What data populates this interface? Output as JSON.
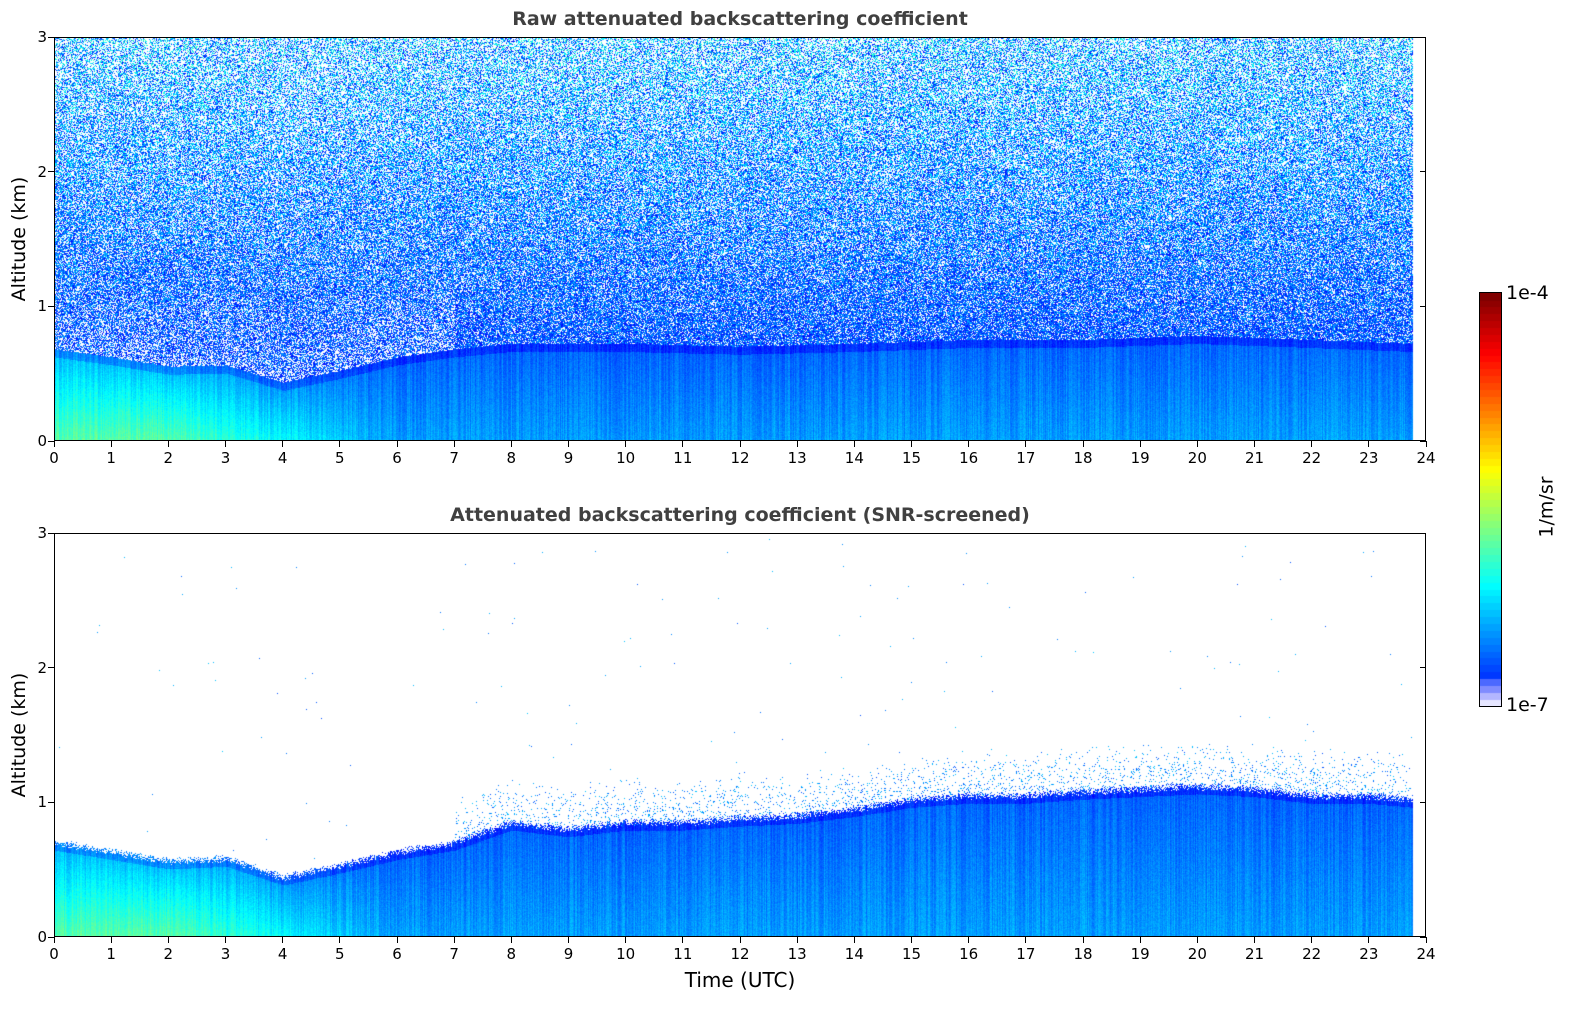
{
  "chart_data": [
    {
      "type": "heatmap",
      "title": "Raw attenuated backscattering coefficient",
      "xlabel": "",
      "ylabel": "Altitude (km)",
      "xlim": [
        0,
        24
      ],
      "ylim": [
        0,
        3
      ],
      "x_ticks": [
        "0",
        "1",
        "2",
        "3",
        "4",
        "5",
        "6",
        "7",
        "8",
        "9",
        "10",
        "11",
        "12",
        "13",
        "14",
        "15",
        "16",
        "17",
        "18",
        "19",
        "20",
        "21",
        "22",
        "23",
        "24"
      ],
      "y_ticks": [
        "0",
        "1",
        "2",
        "3"
      ],
      "data_end_time": 23.8,
      "layer_top_km": [
        [
          0,
          0.68
        ],
        [
          1,
          0.62
        ],
        [
          2,
          0.55
        ],
        [
          3,
          0.56
        ],
        [
          4,
          0.43
        ],
        [
          5,
          0.52
        ],
        [
          6,
          0.62
        ],
        [
          7,
          0.68
        ],
        [
          8,
          0.72
        ],
        [
          10,
          0.72
        ],
        [
          12,
          0.7
        ],
        [
          14,
          0.72
        ],
        [
          16,
          0.75
        ],
        [
          18,
          0.75
        ],
        [
          20,
          0.78
        ],
        [
          22,
          0.75
        ],
        [
          23.8,
          0.72
        ]
      ],
      "noise": true
    },
    {
      "type": "heatmap",
      "title": "Attenuated backscattering coefficient (SNR-screened)",
      "xlabel": "Time (UTC)",
      "ylabel": "Altitude (km)",
      "xlim": [
        0,
        24
      ],
      "ylim": [
        0,
        3
      ],
      "x_ticks": [
        "0",
        "1",
        "2",
        "3",
        "4",
        "5",
        "6",
        "7",
        "8",
        "9",
        "10",
        "11",
        "12",
        "13",
        "14",
        "15",
        "16",
        "17",
        "18",
        "19",
        "20",
        "21",
        "22",
        "23",
        "24"
      ],
      "y_ticks": [
        "0",
        "1",
        "2",
        "3"
      ],
      "data_end_time": 23.8,
      "layer_top_km": [
        [
          0,
          0.7
        ],
        [
          1,
          0.63
        ],
        [
          2,
          0.56
        ],
        [
          3,
          0.58
        ],
        [
          4,
          0.44
        ],
        [
          5,
          0.53
        ],
        [
          6,
          0.63
        ],
        [
          7,
          0.7
        ],
        [
          8,
          0.85
        ],
        [
          9,
          0.8
        ],
        [
          10,
          0.85
        ],
        [
          11,
          0.85
        ],
        [
          12,
          0.88
        ],
        [
          13,
          0.9
        ],
        [
          14,
          0.95
        ],
        [
          15,
          1.02
        ],
        [
          16,
          1.05
        ],
        [
          17,
          1.05
        ],
        [
          18,
          1.08
        ],
        [
          19,
          1.1
        ],
        [
          20,
          1.12
        ],
        [
          21,
          1.1
        ],
        [
          22,
          1.05
        ],
        [
          23,
          1.05
        ],
        [
          23.8,
          1.02
        ]
      ],
      "noise": false
    }
  ],
  "colorbar": {
    "max_label": "1e-4",
    "min_label": "1e-7",
    "unit_label": "1/m/sr",
    "colormap": "jet"
  }
}
